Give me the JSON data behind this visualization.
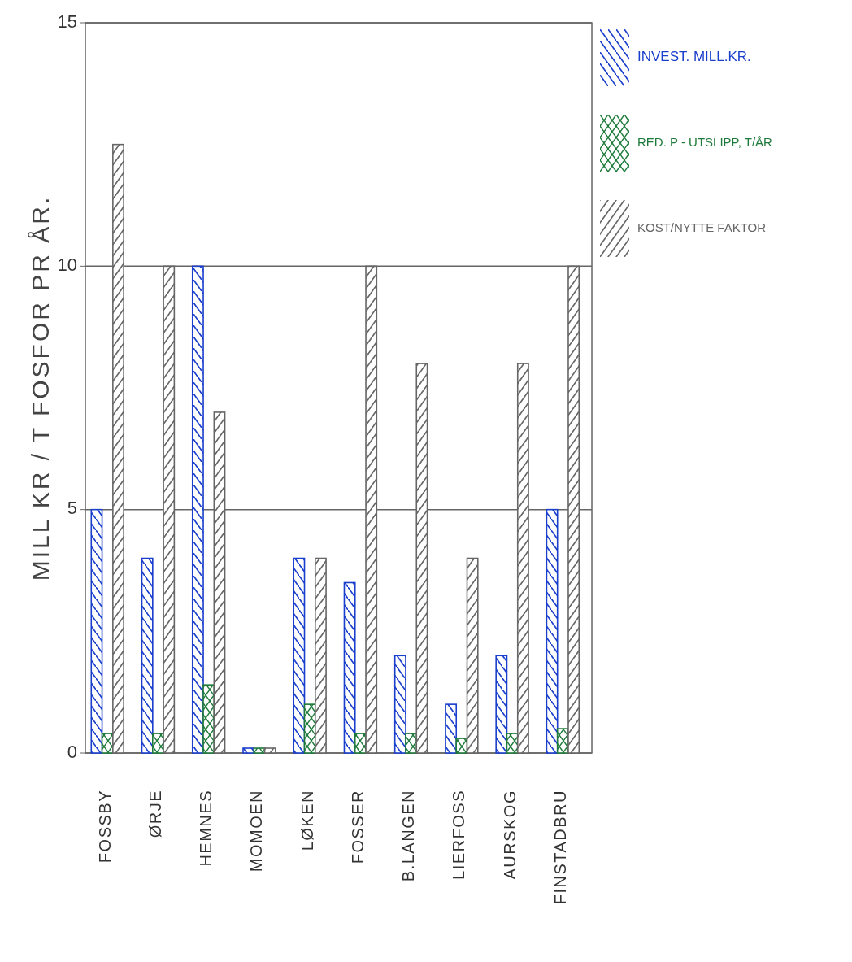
{
  "chart_data": {
    "type": "bar",
    "ylabel": "MILL KR / T FOSFOR PR ÅR.",
    "categories": [
      "FOSSBY",
      "ØRJE",
      "HEMNES",
      "MOMOEN",
      "LØKEN",
      "FOSSER",
      "B.LANGEN",
      "LIERFOSS",
      "AURSKOG",
      "FINSTADBRU"
    ],
    "series": [
      {
        "name": "INVEST. MILL.KR.",
        "color": "#1a3fcc",
        "values": [
          5,
          4,
          10,
          0.1,
          4,
          3.5,
          2,
          1,
          2,
          5
        ]
      },
      {
        "name": "RED. P - UTSLIPP, T/ÅR",
        "color": "#1e7a3a",
        "values": [
          0.4,
          0.4,
          1.4,
          0.1,
          1,
          0.4,
          0.4,
          0.3,
          0.4,
          0.5
        ]
      },
      {
        "name": "KOST/NYTTE FAKTOR",
        "color": "#666666",
        "values": [
          12.5,
          10,
          7,
          0.1,
          4,
          10,
          8,
          4,
          8,
          10
        ]
      }
    ],
    "ylim": [
      0,
      15
    ],
    "yticks": [
      0,
      5,
      10,
      15
    ],
    "grid": "y",
    "legend": "top right"
  }
}
